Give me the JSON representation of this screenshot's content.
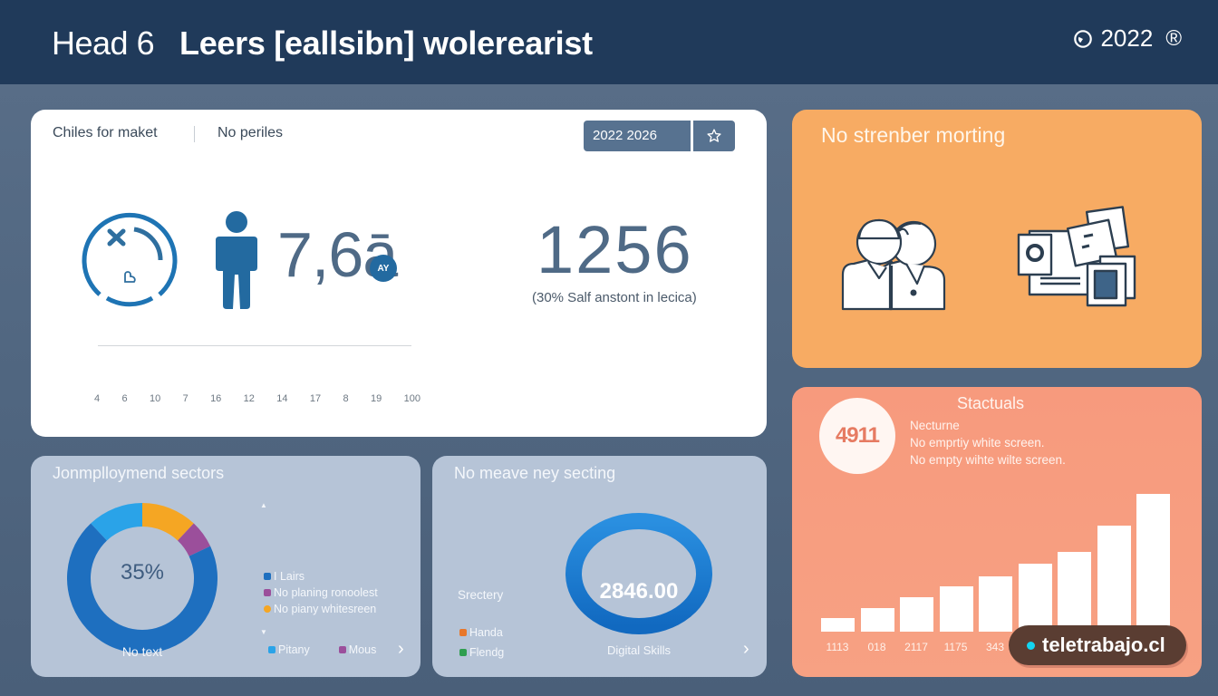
{
  "header": {
    "label": "Head 6",
    "title": "Leers [eallsibn] wolerearist",
    "year": "2022",
    "icons": [
      "clock-icon",
      "registered-icon"
    ],
    "registered_glyph": "®",
    "background": "#203a5a"
  },
  "main_card": {
    "tabs": [
      {
        "label": "Chiles for maket"
      },
      {
        "label": "No periles"
      }
    ],
    "date_range": "2022 2026",
    "star_button": "star-icon",
    "metric_value": "7,6ā",
    "metric_badge": "AY",
    "kpi_value": "1256",
    "kpi_subtitle": "(30%   Salf anstont in lecica)",
    "axis_ticks": [
      "4",
      "6",
      "10",
      "7",
      "16",
      "12",
      "14",
      "17",
      "8",
      "19",
      "100"
    ]
  },
  "orange_card": {
    "title": "No strenber morting",
    "icons": [
      "people-icon",
      "documents-icon"
    ],
    "background": "#f7ab63"
  },
  "stats_card": {
    "badge_value": "4911",
    "title": "Stactuals",
    "lines": [
      "Necturne",
      "No emprtiy white screen.",
      "No empty wihte wilte screen."
    ],
    "background": "#f79a7d"
  },
  "sectors_card": {
    "title": "Jonmplloymend sectors",
    "center_value": "35%",
    "caption": "No text",
    "legend": [
      {
        "label": "I Lairs",
        "color": "#1e6fbf"
      },
      {
        "label": "No planing ronoolest",
        "color": "#9b4f9b"
      },
      {
        "label": "No piany whitesreen",
        "color": "#f5a623"
      }
    ],
    "legend_bottom": [
      {
        "label": "Pitany",
        "color": "#2aa3e8"
      },
      {
        "label": "Mous",
        "color": "#9b4f9b"
      }
    ],
    "next_glyph": "›"
  },
  "skills_card": {
    "title": "No meave ney secting",
    "center_value": "2846.00",
    "side_label": "Srectery",
    "legend": [
      {
        "label": "Handa",
        "color": "#e8772a"
      },
      {
        "label": "Flendg",
        "color": "#2f9e4f"
      }
    ],
    "caption": "Digital Skills",
    "next_glyph": "›"
  },
  "watermark": {
    "text": "teletrabajo.cl",
    "dot_color": "#13d4f0"
  },
  "chart_data": [
    {
      "type": "pie",
      "title": "Jonmplloymend sectors",
      "center_label": "35%",
      "categories": [
        "I Lairs",
        "Pitany",
        "No piany whitesreen",
        "No planing ronoolest"
      ],
      "values": [
        70,
        12,
        12,
        6
      ],
      "colors": [
        "#1e6fbf",
        "#2aa3e8",
        "#f5a623",
        "#9b4f9b"
      ],
      "donut": true
    },
    {
      "type": "pie",
      "title": "No meave ney secting",
      "center_label": "2846.00",
      "categories": [
        "Digital Skills"
      ],
      "values": [
        100
      ],
      "colors": [
        "#1c7fd6"
      ],
      "donut": true
    },
    {
      "type": "bar",
      "title": "Stactuals",
      "categories": [
        "1113",
        "018",
        "2117",
        "1175",
        "343",
        "",
        "",
        "",
        ""
      ],
      "values": [
        15,
        26,
        38,
        50,
        61,
        75,
        88,
        117,
        152
      ],
      "ylim": [
        0,
        160
      ],
      "grid": false,
      "color": "#ffffff"
    }
  ]
}
